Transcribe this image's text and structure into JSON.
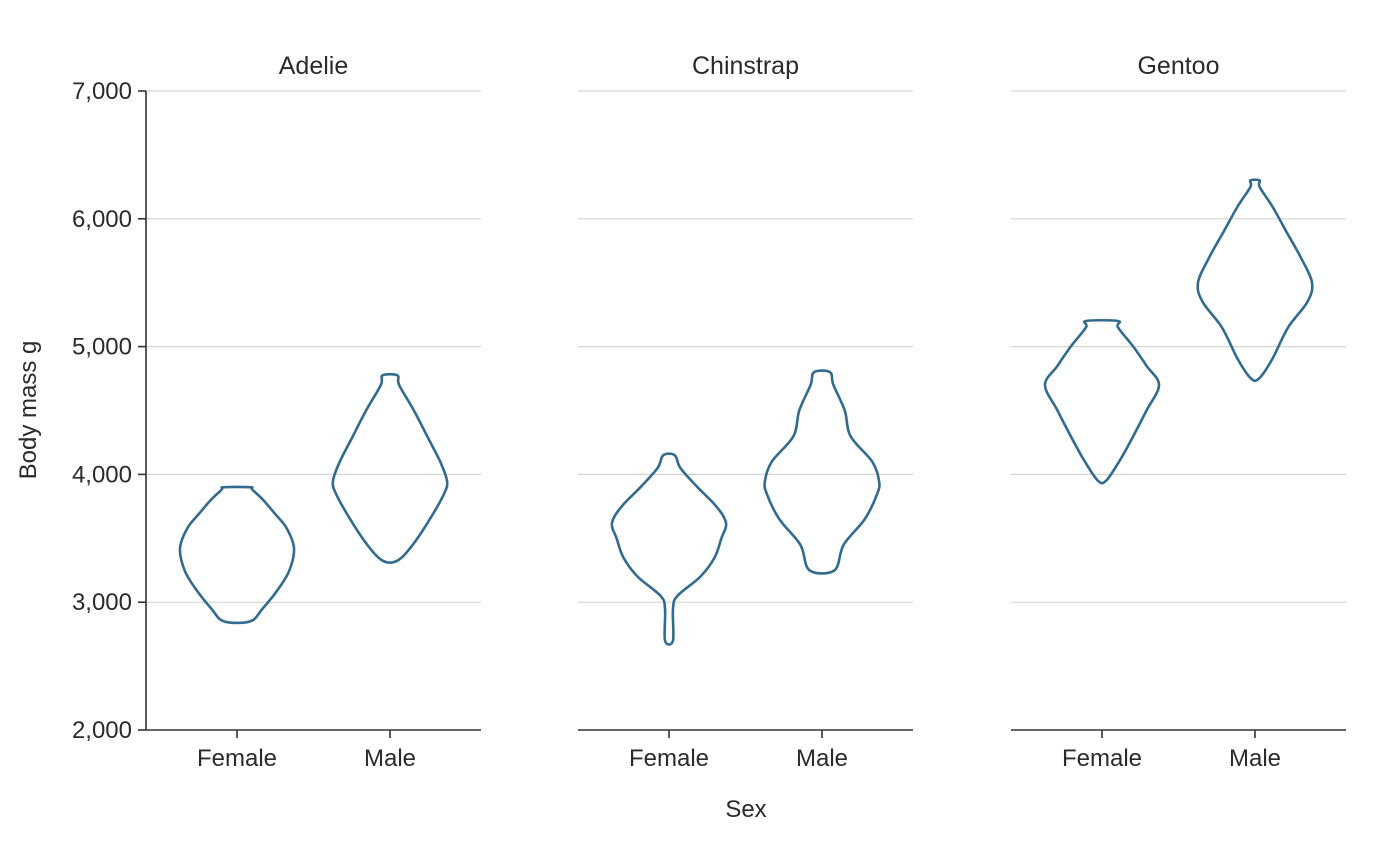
{
  "chart_data": {
    "type": "violin",
    "xlabel": "Sex",
    "ylabel": "Body mass g",
    "ylim": [
      2000,
      7000
    ],
    "yticks": [
      "2,000",
      "3,000",
      "4,000",
      "5,000",
      "6,000",
      "7,000"
    ],
    "ytick_values": [
      2000,
      3000,
      4000,
      5000,
      6000,
      7000
    ],
    "grid": true,
    "color": "#336b8e",
    "facets": [
      {
        "title": "Adelie",
        "categories": [
          "Female",
          "Male"
        ],
        "violins": [
          {
            "category": "Female",
            "min": 2850,
            "max": 3900,
            "profile": [
              [
                2850,
                0.23
              ],
              [
                2950,
                0.45
              ],
              [
                3100,
                0.72
              ],
              [
                3250,
                0.92
              ],
              [
                3420,
                1.0
              ],
              [
                3580,
                0.87
              ],
              [
                3700,
                0.65
              ],
              [
                3800,
                0.46
              ],
              [
                3880,
                0.27
              ],
              [
                3900,
                0.23
              ]
            ]
          },
          {
            "category": "Male",
            "min": 3325,
            "max": 4775,
            "profile": [
              [
                3325,
                0.13
              ],
              [
                3450,
                0.4
              ],
              [
                3650,
                0.7
              ],
              [
                3850,
                0.95
              ],
              [
                3950,
                1.0
              ],
              [
                4100,
                0.88
              ],
              [
                4300,
                0.65
              ],
              [
                4500,
                0.42
              ],
              [
                4700,
                0.16
              ],
              [
                4775,
                0.13
              ]
            ]
          }
        ]
      },
      {
        "title": "Chinstrap",
        "categories": [
          "Female",
          "Male"
        ],
        "violins": [
          {
            "category": "Female",
            "min": 2700,
            "max": 4150,
            "profile": [
              [
                2700,
                0.07
              ],
              [
                2950,
                0.07
              ],
              [
                3050,
                0.15
              ],
              [
                3200,
                0.55
              ],
              [
                3350,
                0.8
              ],
              [
                3500,
                0.92
              ],
              [
                3620,
                1.0
              ],
              [
                3750,
                0.83
              ],
              [
                3900,
                0.5
              ],
              [
                4050,
                0.2
              ],
              [
                4150,
                0.1
              ]
            ]
          },
          {
            "category": "Male",
            "min": 3250,
            "max": 4800,
            "profile": [
              [
                3250,
                0.22
              ],
              [
                3450,
                0.38
              ],
              [
                3650,
                0.75
              ],
              [
                3850,
                0.97
              ],
              [
                3950,
                1.0
              ],
              [
                4100,
                0.88
              ],
              [
                4300,
                0.5
              ],
              [
                4500,
                0.4
              ],
              [
                4700,
                0.2
              ],
              [
                4800,
                0.14
              ]
            ]
          }
        ]
      },
      {
        "title": "Gentoo",
        "categories": [
          "Female",
          "Male"
        ],
        "violins": [
          {
            "category": "Female",
            "min": 3950,
            "max": 5200,
            "profile": [
              [
                3950,
                0.07
              ],
              [
                4100,
                0.3
              ],
              [
                4300,
                0.55
              ],
              [
                4500,
                0.78
              ],
              [
                4700,
                1.0
              ],
              [
                4850,
                0.78
              ],
              [
                5000,
                0.55
              ],
              [
                5150,
                0.28
              ],
              [
                5200,
                0.28
              ]
            ]
          },
          {
            "category": "Male",
            "min": 4750,
            "max": 6300,
            "profile": [
              [
                4750,
                0.07
              ],
              [
                4900,
                0.3
              ],
              [
                5150,
                0.58
              ],
              [
                5350,
                0.92
              ],
              [
                5500,
                1.0
              ],
              [
                5700,
                0.8
              ],
              [
                5900,
                0.55
              ],
              [
                6100,
                0.3
              ],
              [
                6250,
                0.08
              ],
              [
                6300,
                0.08
              ]
            ]
          }
        ]
      }
    ]
  }
}
